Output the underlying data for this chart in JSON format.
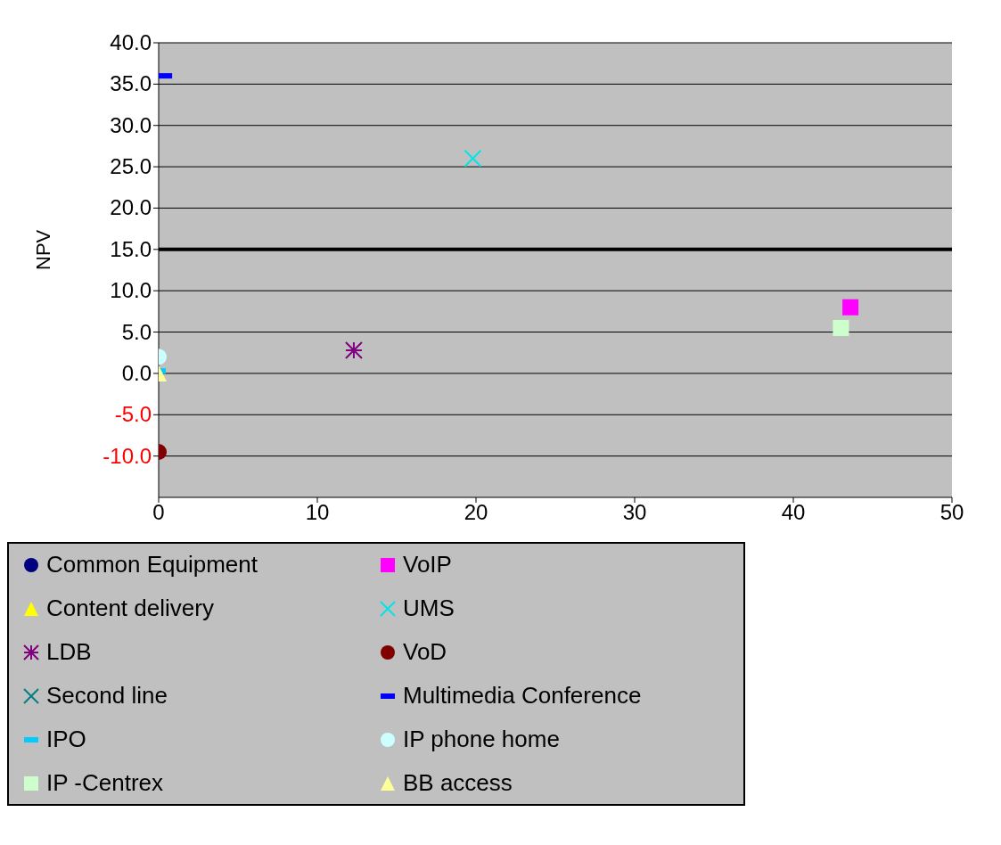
{
  "chart_data": {
    "type": "scatter",
    "ylabel": "NPV",
    "xlim": [
      0,
      50
    ],
    "xticks": [
      0,
      10,
      20,
      30,
      40,
      50
    ],
    "ylim": [
      -15,
      40
    ],
    "yticks": [
      {
        "value": -10,
        "label": "-10.0"
      },
      {
        "value": -5,
        "label": "-5.0"
      },
      {
        "value": 0,
        "label": "0.0"
      },
      {
        "value": 5,
        "label": "5.0"
      },
      {
        "value": 10,
        "label": "10.0"
      },
      {
        "value": 15,
        "label": "15.0"
      },
      {
        "value": 20,
        "label": "20.0"
      },
      {
        "value": 25,
        "label": "25.0"
      },
      {
        "value": 30,
        "label": "30.0"
      },
      {
        "value": 35,
        "label": "35.0"
      },
      {
        "value": 40,
        "label": "40.0"
      }
    ],
    "grid": "y",
    "legend": "bottom left",
    "ref_lines": [
      {
        "axis": "y",
        "value": 15,
        "color": "#000000"
      }
    ],
    "series": [
      {
        "name": "Common Equipment",
        "color": "#000080",
        "marker": "circle",
        "x": [
          null
        ],
        "values": [
          null
        ]
      },
      {
        "name": "VoIP",
        "color": "#ff00ff",
        "marker": "square",
        "x": [
          43.6
        ],
        "values": [
          8
        ]
      },
      {
        "name": "Content delivery",
        "color": "#ffff00",
        "marker": "triangle",
        "x": [
          null
        ],
        "values": [
          null
        ]
      },
      {
        "name": "UMS",
        "color": "#00e5e5",
        "marker": "cross",
        "x": [
          19.8
        ],
        "values": [
          26
        ]
      },
      {
        "name": "LDB",
        "color": "#800080",
        "x": [
          12.3
        ],
        "values": [
          2.8
        ]
      },
      {
        "name": "VoD",
        "color": "#800000",
        "marker": "circle",
        "x": [
          0
        ],
        "values": [
          -9.5
        ]
      },
      {
        "name": "Second line",
        "color": "#008080",
        "marker": "cross",
        "x": [
          null
        ],
        "values": [
          null
        ]
      },
      {
        "name": "Multimedia Conference",
        "color": "#0000ff",
        "marker": "square",
        "x": [
          0.4
        ],
        "values": [
          36
        ]
      },
      {
        "name": "IPO",
        "color": "#00ccff",
        "marker": "square",
        "x": [
          0
        ],
        "values": [
          0.3
        ]
      },
      {
        "name": "IP phone home",
        "color": "#ccffff",
        "marker": "circle",
        "x": [
          0
        ],
        "values": [
          2
        ]
      },
      {
        "name": "IP -Centrex",
        "color": "#ccffcc",
        "marker": "square",
        "x": [
          43
        ],
        "values": [
          5.5
        ]
      },
      {
        "name": "BB access",
        "color": "#ffff99",
        "marker": "triangle",
        "x": [
          0
        ],
        "values": [
          0
        ]
      }
    ]
  }
}
